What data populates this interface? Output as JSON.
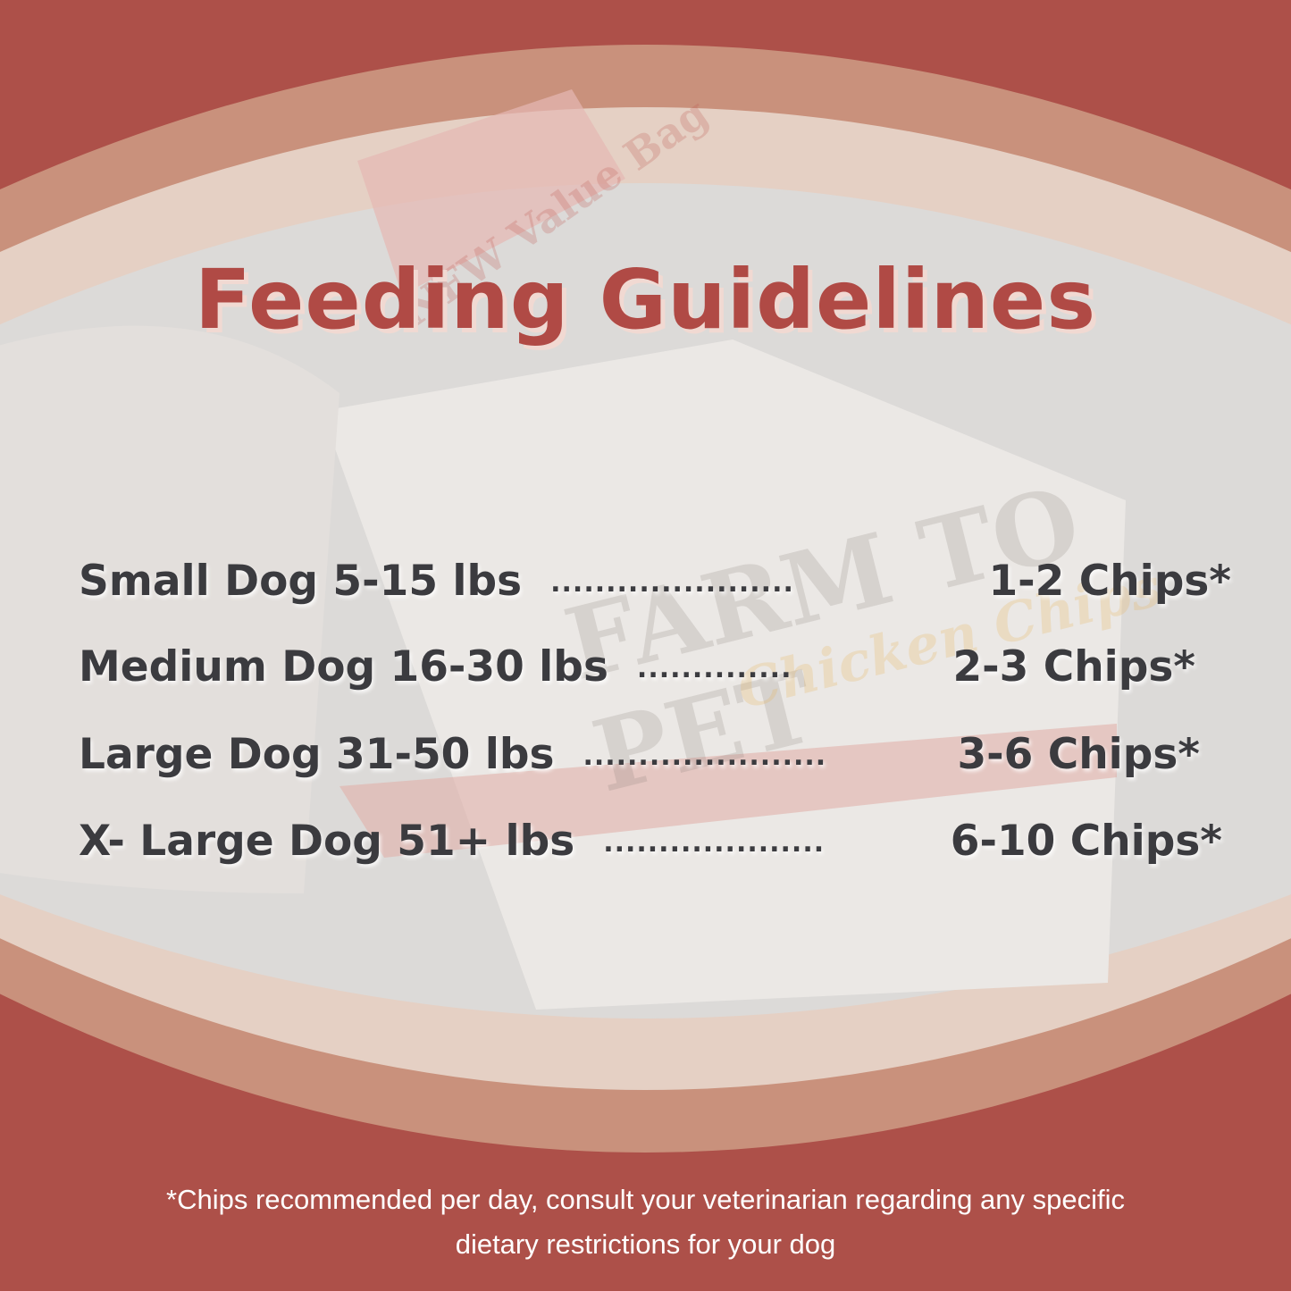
{
  "colors": {
    "brand_red": "#ad5049",
    "band_mid": "#c9917c",
    "band_light": "#e5d0c4",
    "title": "#b04a45",
    "text": "#3b3b3f"
  },
  "photo_lettering": {
    "badge": "NEW Value Bag",
    "brand": "FARM TO PET",
    "product": "Chicken Chips"
  },
  "title": "Feeding Guidelines",
  "guidelines": [
    {
      "size": "Small Dog 5-15 lbs",
      "dots": "......................",
      "amount": "1-2 Chips*"
    },
    {
      "size": "Medium Dog 16-30 lbs",
      "dots": "..............",
      "amount": "2-3 Chips*"
    },
    {
      "size": "Large Dog 31-50 lbs",
      "dots": "......................",
      "amount": "3-6 Chips*"
    },
    {
      "size": "X- Large Dog 51+ lbs",
      "dots": "....................",
      "amount": "6-10 Chips*"
    }
  ],
  "footnote": {
    "line1": "*Chips recommended per day, consult your veterinarian regarding any specific",
    "line2": "dietary restrictions for your dog"
  }
}
